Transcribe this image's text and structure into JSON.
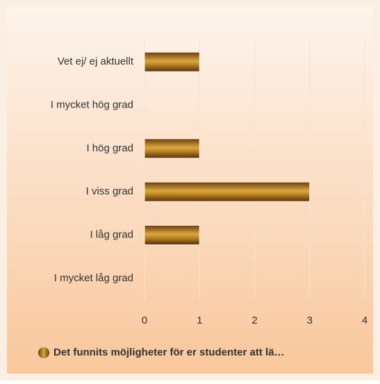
{
  "chart_data": {
    "type": "bar",
    "orientation": "horizontal",
    "categories": [
      "Vet ej/ ej aktuellt",
      "I mycket hög grad",
      "I hög grad",
      "I viss grad",
      "I låg grad",
      "I mycket låg grad"
    ],
    "series": [
      {
        "name": "Det funnits möjligheter för er studenter att lä…",
        "color": "#b07a1a",
        "values": [
          1,
          0,
          1,
          3,
          1,
          0
        ]
      }
    ],
    "xlim": [
      0,
      4
    ],
    "xticks": [
      0,
      1,
      2,
      3,
      4
    ],
    "grid": true,
    "legend": "bottom"
  }
}
